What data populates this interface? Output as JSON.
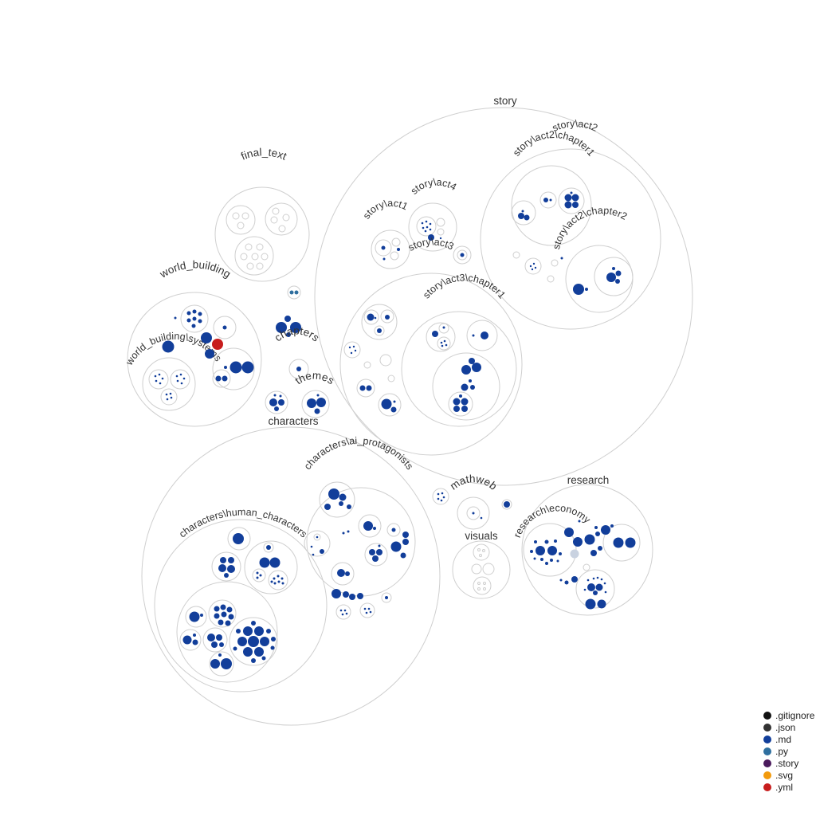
{
  "diagram": {
    "labels": {
      "story": "story",
      "story_act2": "story\\act2",
      "story_act2_chapter1": "story\\act2\\chapter1",
      "story_act2_chapter2": "story\\act2\\chapter2",
      "story_act4": "story\\act4",
      "story_act1": "story\\act1",
      "story_act3": "story\\act3",
      "story_act3_chapter1": "story\\act3\\chapter1",
      "final_text": "final_text",
      "world_building": "world_building",
      "world_building_systems": "world_building\\systems",
      "chapters": "chapters",
      "themes": "themes",
      "characters": "characters",
      "characters_ai_protagonists": "characters\\ai_protagonists",
      "characters_human_characters": "characters\\human_characters",
      "mathweb": "mathweb",
      "visuals": "visuals",
      "research": "research",
      "research_economy": "research\\economy"
    }
  },
  "legend": {
    "items": [
      {
        "label": ".gitignore",
        "color": "#111111"
      },
      {
        "label": ".json",
        "color": "#333333"
      },
      {
        "label": ".md",
        "color": "#123e9a"
      },
      {
        "label": ".py",
        "color": "#2f6f9f"
      },
      {
        "label": ".story",
        "color": "#4a1a5c"
      },
      {
        "label": ".svg",
        "color": "#f29a0c"
      },
      {
        "label": ".yml",
        "color": "#c71d1d"
      }
    ]
  }
}
